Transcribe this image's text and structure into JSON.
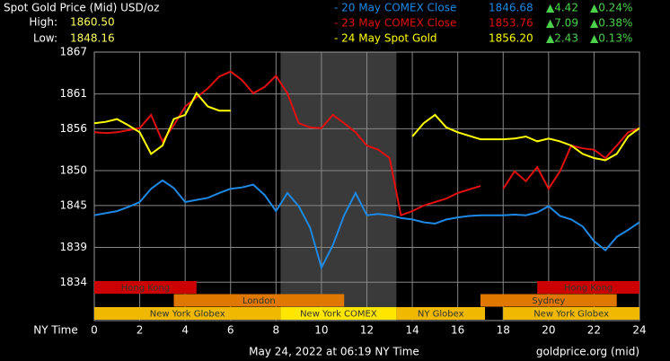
{
  "chart_data": {
    "type": "line",
    "title": "Spot Gold Price (Mid) USD/oz",
    "stats": [
      {
        "label": "High:",
        "value": "1860.50"
      },
      {
        "label": "Low:",
        "value": "1848.16"
      }
    ],
    "x_label": "NY Time",
    "footer": "May 24, 2022 at 06:19 NY Time",
    "source": "goldprice.org (mid)",
    "x": [
      0,
      0.5,
      1,
      1.5,
      2,
      2.5,
      3,
      3.5,
      4,
      4.5,
      5,
      5.5,
      6,
      6.5,
      7,
      7.5,
      8,
      8.5,
      9,
      9.5,
      10,
      10.5,
      11,
      11.5,
      12,
      12.5,
      13,
      13.5,
      14,
      14.5,
      15,
      15.5,
      16,
      16.5,
      17,
      17.5,
      18,
      18.5,
      19,
      19.5,
      20,
      20.5,
      21,
      21.5,
      22,
      22.5,
      23,
      23.5,
      24
    ],
    "xlim": [
      0,
      24
    ],
    "xticks": [
      0,
      2,
      4,
      6,
      8,
      10,
      12,
      14,
      16,
      18,
      20,
      22,
      24
    ],
    "ylim": [
      1828.5,
      1867
    ],
    "yticks": [
      1834,
      1839,
      1845,
      1850,
      1856,
      1861,
      1867
    ],
    "grid": true,
    "shaded_range": [
      8.2,
      13.3
    ],
    "series": [
      {
        "name": "- 20 May COMEX Close",
        "color": "#1e88e5",
        "legend_values": [
          "1846.68",
          "▲4.42",
          "▲0.24%"
        ],
        "values": [
          1843.6,
          1843.9,
          1844.2,
          1844.8,
          1845.5,
          1847.4,
          1848.6,
          1847.5,
          1845.5,
          1845.8,
          1846.1,
          1846.8,
          1847.4,
          1847.6,
          1848,
          1846.5,
          1844.2,
          1846.8,
          1844.9,
          1841.8,
          1836.1,
          1839.3,
          1843.6,
          1846.8,
          1843.6,
          1843.8,
          1843.6,
          1843.2,
          1843,
          1842.6,
          1842.4,
          1843,
          1843.3,
          1843.5,
          1843.6,
          1843.6,
          1843.6,
          1843.7,
          1843.6,
          1844,
          1844.9,
          1843.5,
          1843,
          1842,
          1839.9,
          1838.6,
          1840.5,
          1841.5,
          1842.6
        ]
      },
      {
        "name": "- 23 May COMEX Close",
        "color": "#e01010",
        "legend_values": [
          "1853.76",
          "▲7.09",
          "▲0.38%"
        ],
        "values": [
          1855.5,
          1855.4,
          1855.5,
          1855.8,
          1856.1,
          1858,
          1854.2,
          1856.5,
          1859.2,
          1860.5,
          1861.8,
          1863.5,
          1864.2,
          1863,
          1861.1,
          1862,
          1863.6,
          1861.1,
          1856.8,
          1856.2,
          1856.1,
          1858,
          1856.8,
          1855.5,
          1853.6,
          1853,
          1851.8,
          1843.6,
          1844.2,
          1845,
          1845.5,
          1846,
          1846.8,
          1847.3,
          1847.8,
          null,
          1847.4,
          1849.9,
          1848.5,
          1850.5,
          1847.4,
          1849.9,
          1853.6,
          1853.2,
          1853,
          1851.8,
          1853.6,
          1855.5,
          1856.1
        ]
      },
      {
        "name": "- 24 May Spot Gold",
        "color": "#ffff00",
        "legend_values": [
          "1856.20",
          "▲2.43",
          "▲0.13%"
        ],
        "values": [
          1856.8,
          1857,
          1857.4,
          1856.5,
          1855.5,
          1852.4,
          1853.6,
          1857.4,
          1858,
          1861.1,
          1859.2,
          1858.6,
          1858.6,
          null,
          null,
          null,
          null,
          null,
          null,
          null,
          null,
          null,
          null,
          null,
          null,
          null,
          null,
          null,
          1854.9,
          1856.8,
          1858,
          1856.2,
          1855.5,
          1855,
          1854.5,
          1854.5,
          1854.5,
          1854.6,
          1854.9,
          1854.2,
          1854.6,
          1854.2,
          1853.6,
          1852.4,
          1851.8,
          1851.5,
          1852.4,
          1854.9,
          1856.1
        ]
      }
    ],
    "sessions": [
      {
        "label": "Hong Kong",
        "start": 0,
        "end": 4.5,
        "row": 0,
        "color": "#cc0000"
      },
      {
        "label": "Hong Kong",
        "start": 19.5,
        "end": 24,
        "row": 0,
        "color": "#cc0000"
      },
      {
        "label": "London",
        "start": 3.5,
        "end": 11,
        "row": 1,
        "color": "#e07800"
      },
      {
        "label": "Sydney",
        "start": 17,
        "end": 23,
        "row": 1,
        "color": "#e07800"
      },
      {
        "label": "New York Globex",
        "start": 0,
        "end": 8.2,
        "row": 2,
        "color": "#f0b800"
      },
      {
        "label": "New York COMEX",
        "start": 8.2,
        "end": 13.3,
        "row": 2,
        "color": "#ffe600"
      },
      {
        "label": "NY Globex",
        "start": 13.3,
        "end": 17.2,
        "row": 2,
        "color": "#f0b800"
      },
      {
        "label": "New York Globex",
        "start": 18,
        "end": 24,
        "row": 2,
        "color": "#f0b800"
      }
    ]
  }
}
